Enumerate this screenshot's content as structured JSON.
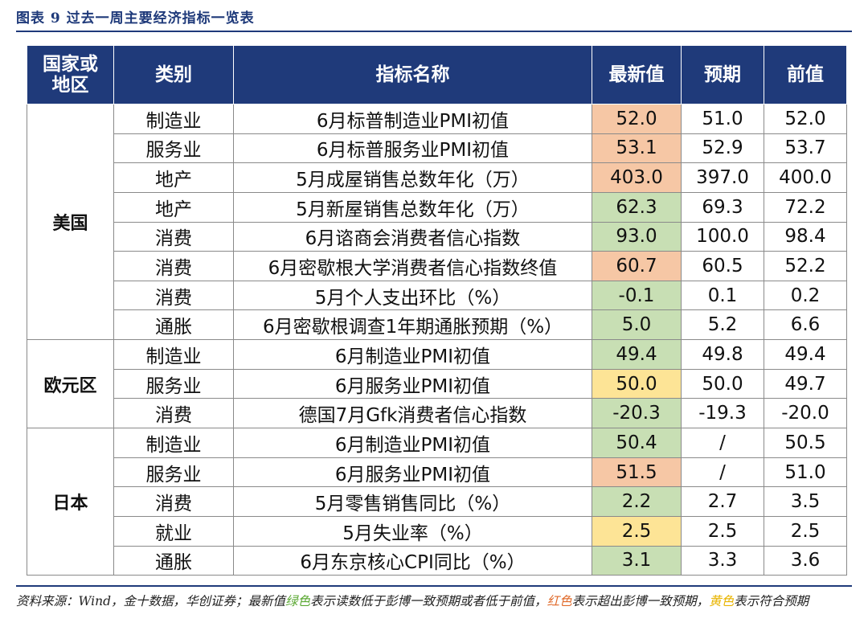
{
  "figure": {
    "title": "图表 9  过去一周主要经济指标一览表"
  },
  "table": {
    "headers": [
      "国家或\n地区",
      "类别",
      "指标名称",
      "最新值",
      "预期",
      "前值"
    ],
    "regions": [
      "美国",
      "欧元区",
      "日本"
    ],
    "rows": [
      {
        "category": "制造业",
        "indicator": "6月标普制造业PMI初值",
        "latest": "52.0",
        "expected": "51.0",
        "previous": "52.0",
        "highlight": "red"
      },
      {
        "category": "服务业",
        "indicator": "6月标普服务业PMI初值",
        "latest": "53.1",
        "expected": "52.9",
        "previous": "53.7",
        "highlight": "red"
      },
      {
        "category": "地产",
        "indicator": "5月成屋销售总数年化（万）",
        "latest": "403.0",
        "expected": "397.0",
        "previous": "400.0",
        "highlight": "red"
      },
      {
        "category": "地产",
        "indicator": "5月新屋销售总数年化（万）",
        "latest": "62.3",
        "expected": "69.3",
        "previous": "72.2",
        "highlight": "green"
      },
      {
        "category": "消费",
        "indicator": "6月谘商会消费者信心指数",
        "latest": "93.0",
        "expected": "100.0",
        "previous": "98.4",
        "highlight": "green"
      },
      {
        "category": "消费",
        "indicator": "6月密歇根大学消费者信心指数终值",
        "latest": "60.7",
        "expected": "60.5",
        "previous": "52.2",
        "highlight": "red"
      },
      {
        "category": "消费",
        "indicator": "5月个人支出环比（%）",
        "latest": "-0.1",
        "expected": "0.1",
        "previous": "0.2",
        "highlight": "green"
      },
      {
        "category": "通胀",
        "indicator": "6月密歇根调查1年期通胀预期（%）",
        "latest": "5.0",
        "expected": "5.2",
        "previous": "6.6",
        "highlight": "green"
      },
      {
        "category": "制造业",
        "indicator": "6月制造业PMI初值",
        "latest": "49.4",
        "expected": "49.8",
        "previous": "49.4",
        "highlight": "green"
      },
      {
        "category": "服务业",
        "indicator": "6月服务业PMI初值",
        "latest": "50.0",
        "expected": "50.0",
        "previous": "49.7",
        "highlight": "yellow"
      },
      {
        "category": "消费",
        "indicator": "德国7月Gfk消费者信心指数",
        "latest": "-20.3",
        "expected": "-19.3",
        "previous": "-20.0",
        "highlight": "green"
      },
      {
        "category": "制造业",
        "indicator": "6月制造业PMI初值",
        "latest": "50.4",
        "expected": "/",
        "previous": "50.5",
        "highlight": "green"
      },
      {
        "category": "服务业",
        "indicator": "6月服务业PMI初值",
        "latest": "51.5",
        "expected": "/",
        "previous": "51.0",
        "highlight": "red"
      },
      {
        "category": "消费",
        "indicator": "5月零售销售同比（%）",
        "latest": "2.2",
        "expected": "2.7",
        "previous": "3.5",
        "highlight": "green"
      },
      {
        "category": "就业",
        "indicator": "5月失业率（%）",
        "latest": "2.5",
        "expected": "2.5",
        "previous": "2.5",
        "highlight": "yellow"
      },
      {
        "category": "通胀",
        "indicator": "6月东京核心CPI同比（%）",
        "latest": "3.1",
        "expected": "3.3",
        "previous": "3.6",
        "highlight": "green"
      }
    ]
  },
  "footnote": {
    "part1": "资料来源：Wind，金十数据，华创证券；最新值",
    "green": "绿色",
    "part2": "表示读数低于彭博一致预期或者低于前值，",
    "red": "红色",
    "part3": "表示超出彭博一致预期，",
    "yellow": "黄色",
    "part4": "表示符合预期"
  },
  "colors": {
    "header_bg": "#1f3a7a",
    "red": "#f6c7a5",
    "green": "#c8dfb4",
    "yellow": "#fde496"
  }
}
